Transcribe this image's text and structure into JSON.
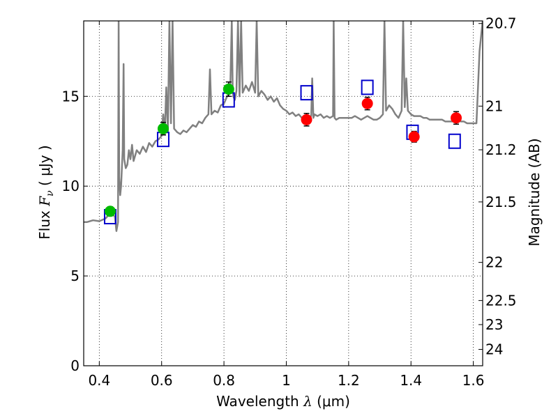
{
  "chart_data": {
    "type": "scatter",
    "xlabel": {
      "prefix": "Wavelength  ",
      "symbol": "λ",
      "suffix": " (μm)"
    },
    "ylabel": {
      "prefix": "Flux  ",
      "symbol": "F",
      "subscript": "ν",
      "suffix": "  (  μJy  )"
    },
    "y2label": "Magnitude (AB)",
    "xlim": [
      0.35,
      1.63
    ],
    "ylim": [
      0,
      19.2
    ],
    "grid": true,
    "x_ticks": [
      {
        "value": 0.4,
        "label": "0.4"
      },
      {
        "value": 0.6,
        "label": "0.6"
      },
      {
        "value": 0.8,
        "label": "0.8"
      },
      {
        "value": 1.0,
        "label": "1"
      },
      {
        "value": 1.2,
        "label": "1.2"
      },
      {
        "value": 1.4,
        "label": "1.4"
      },
      {
        "value": 1.6,
        "label": "1.6"
      }
    ],
    "y_ticks": [
      {
        "value": 0,
        "label": "0"
      },
      {
        "value": 5,
        "label": "5"
      },
      {
        "value": 10,
        "label": "10"
      },
      {
        "value": 15,
        "label": "15"
      }
    ],
    "y2_ticks": [
      {
        "mag": 20.7,
        "label": "20.7"
      },
      {
        "mag": 21,
        "label": "21"
      },
      {
        "mag": 21.2,
        "label": "21.2"
      },
      {
        "mag": 21.5,
        "label": "21.5"
      },
      {
        "mag": 22,
        "label": "22"
      },
      {
        "mag": 22.5,
        "label": "22.5"
      },
      {
        "mag": 23,
        "label": "23"
      },
      {
        "mag": 24,
        "label": "24"
      }
    ],
    "model_spectrum": {
      "color": "#808080",
      "points": [
        [
          0.35,
          8.0
        ],
        [
          0.36,
          8.0
        ],
        [
          0.38,
          8.1
        ],
        [
          0.4,
          8.05
        ],
        [
          0.42,
          8.2
        ],
        [
          0.43,
          8.4
        ],
        [
          0.44,
          8.5
        ],
        [
          0.45,
          8.3
        ],
        [
          0.455,
          7.5
        ],
        [
          0.46,
          8.0
        ],
        [
          0.462,
          19.2
        ],
        [
          0.464,
          10.5
        ],
        [
          0.467,
          9.5
        ],
        [
          0.47,
          10.0
        ],
        [
          0.475,
          12.0
        ],
        [
          0.478,
          16.8
        ],
        [
          0.48,
          11.5
        ],
        [
          0.485,
          11.0
        ],
        [
          0.49,
          11.2
        ],
        [
          0.495,
          12.0
        ],
        [
          0.5,
          11.5
        ],
        [
          0.505,
          12.3
        ],
        [
          0.51,
          11.4
        ],
        [
          0.52,
          12.0
        ],
        [
          0.53,
          11.8
        ],
        [
          0.54,
          12.2
        ],
        [
          0.55,
          11.9
        ],
        [
          0.56,
          12.4
        ],
        [
          0.57,
          12.2
        ],
        [
          0.58,
          12.5
        ],
        [
          0.59,
          12.6
        ],
        [
          0.6,
          12.8
        ],
        [
          0.605,
          14.0
        ],
        [
          0.61,
          12.9
        ],
        [
          0.615,
          15.5
        ],
        [
          0.62,
          13.0
        ],
        [
          0.625,
          19.2
        ],
        [
          0.63,
          13.5
        ],
        [
          0.635,
          19.2
        ],
        [
          0.64,
          13.2
        ],
        [
          0.65,
          13.0
        ],
        [
          0.66,
          12.9
        ],
        [
          0.67,
          13.1
        ],
        [
          0.68,
          13.0
        ],
        [
          0.69,
          13.2
        ],
        [
          0.7,
          13.4
        ],
        [
          0.71,
          13.3
        ],
        [
          0.72,
          13.6
        ],
        [
          0.73,
          13.5
        ],
        [
          0.74,
          13.8
        ],
        [
          0.75,
          14.0
        ],
        [
          0.755,
          16.5
        ],
        [
          0.76,
          14.0
        ],
        [
          0.77,
          14.2
        ],
        [
          0.78,
          14.1
        ],
        [
          0.79,
          14.5
        ],
        [
          0.8,
          14.6
        ],
        [
          0.81,
          15.0
        ],
        [
          0.82,
          15.2
        ],
        [
          0.825,
          19.2
        ],
        [
          0.828,
          15.5
        ],
        [
          0.83,
          15.0
        ],
        [
          0.835,
          14.8
        ],
        [
          0.84,
          15.3
        ],
        [
          0.845,
          19.2
        ],
        [
          0.85,
          15.0
        ],
        [
          0.855,
          19.2
        ],
        [
          0.86,
          15.2
        ],
        [
          0.87,
          15.6
        ],
        [
          0.88,
          15.3
        ],
        [
          0.89,
          15.8
        ],
        [
          0.9,
          15.2
        ],
        [
          0.905,
          19.2
        ],
        [
          0.91,
          15.0
        ],
        [
          0.92,
          15.3
        ],
        [
          0.93,
          15.1
        ],
        [
          0.94,
          14.8
        ],
        [
          0.95,
          15.0
        ],
        [
          0.96,
          14.7
        ],
        [
          0.97,
          14.9
        ],
        [
          0.98,
          14.5
        ],
        [
          0.99,
          14.3
        ],
        [
          1.0,
          14.2
        ],
        [
          1.01,
          14.0
        ],
        [
          1.02,
          14.1
        ],
        [
          1.03,
          13.9
        ],
        [
          1.04,
          14.0
        ],
        [
          1.05,
          13.8
        ],
        [
          1.06,
          13.9
        ],
        [
          1.07,
          13.7
        ],
        [
          1.08,
          13.9
        ],
        [
          1.083,
          16.0
        ],
        [
          1.087,
          13.8
        ],
        [
          1.09,
          14.0
        ],
        [
          1.1,
          13.9
        ],
        [
          1.11,
          14.0
        ],
        [
          1.12,
          13.8
        ],
        [
          1.13,
          13.9
        ],
        [
          1.14,
          13.8
        ],
        [
          1.15,
          13.9
        ],
        [
          1.152,
          19.2
        ],
        [
          1.155,
          13.8
        ],
        [
          1.16,
          13.7
        ],
        [
          1.17,
          13.8
        ],
        [
          1.18,
          13.8
        ],
        [
          1.19,
          13.8
        ],
        [
          1.2,
          13.8
        ],
        [
          1.21,
          13.8
        ],
        [
          1.22,
          13.9
        ],
        [
          1.23,
          13.8
        ],
        [
          1.24,
          13.7
        ],
        [
          1.25,
          13.8
        ],
        [
          1.26,
          13.9
        ],
        [
          1.27,
          13.8
        ],
        [
          1.28,
          13.7
        ],
        [
          1.29,
          13.7
        ],
        [
          1.3,
          13.8
        ],
        [
          1.31,
          14.0
        ],
        [
          1.315,
          19.2
        ],
        [
          1.32,
          14.2
        ],
        [
          1.33,
          14.5
        ],
        [
          1.34,
          14.3
        ],
        [
          1.35,
          14.0
        ],
        [
          1.36,
          13.8
        ],
        [
          1.37,
          14.2
        ],
        [
          1.375,
          19.2
        ],
        [
          1.38,
          14.4
        ],
        [
          1.385,
          16.0
        ],
        [
          1.39,
          14.2
        ],
        [
          1.4,
          14.0
        ],
        [
          1.41,
          13.9
        ],
        [
          1.42,
          13.9
        ],
        [
          1.43,
          13.9
        ],
        [
          1.44,
          13.8
        ],
        [
          1.45,
          13.8
        ],
        [
          1.46,
          13.7
        ],
        [
          1.47,
          13.7
        ],
        [
          1.48,
          13.7
        ],
        [
          1.49,
          13.7
        ],
        [
          1.5,
          13.7
        ],
        [
          1.51,
          13.6
        ],
        [
          1.52,
          13.6
        ],
        [
          1.53,
          13.6
        ],
        [
          1.54,
          13.6
        ],
        [
          1.55,
          13.7
        ],
        [
          1.56,
          13.6
        ],
        [
          1.57,
          13.6
        ],
        [
          1.58,
          13.5
        ],
        [
          1.59,
          13.5
        ],
        [
          1.6,
          13.5
        ],
        [
          1.61,
          13.5
        ],
        [
          1.62,
          17.5
        ],
        [
          1.63,
          19.2
        ]
      ]
    },
    "observed_green": {
      "color": "#00bb00",
      "points": [
        {
          "x": 0.435,
          "y": 8.6,
          "err": 0.25
        },
        {
          "x": 0.605,
          "y": 13.2,
          "err": 0.35
        },
        {
          "x": 0.815,
          "y": 15.4,
          "err": 0.4
        }
      ]
    },
    "observed_red": {
      "color": "#ff0000",
      "points": [
        {
          "x": 1.065,
          "y": 13.7,
          "err": 0.35
        },
        {
          "x": 1.26,
          "y": 14.6,
          "err": 0.35
        },
        {
          "x": 1.41,
          "y": 12.75,
          "err": 0.3
        },
        {
          "x": 1.545,
          "y": 13.8,
          "err": 0.35
        }
      ]
    },
    "model_photometry": {
      "color": "#0000cc",
      "points": [
        {
          "x": 0.435,
          "y": 8.3
        },
        {
          "x": 0.605,
          "y": 12.6
        },
        {
          "x": 0.815,
          "y": 14.8
        },
        {
          "x": 1.065,
          "y": 15.2
        },
        {
          "x": 1.26,
          "y": 15.5
        },
        {
          "x": 1.405,
          "y": 13.0
        },
        {
          "x": 1.54,
          "y": 12.5
        }
      ]
    }
  }
}
